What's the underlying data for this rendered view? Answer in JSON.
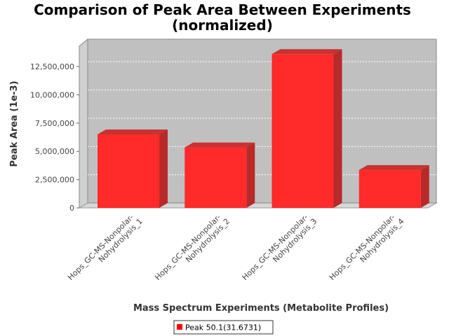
{
  "chart_data": {
    "type": "bar",
    "title_line1": "Comparison of Peak Area Between Experiments",
    "title_line2": "(normalized)",
    "xlabel": "Mass Spectrum Experiments (Metabolite Profiles)",
    "ylabel": "Peak Area (1e-3)",
    "categories": [
      [
        "Hops_GC-MS-Nonpolar-",
        "Nohydrolysis_1"
      ],
      [
        "Hops_GC-MS-Nonpolar-",
        "Nohydrolysis_2"
      ],
      [
        "Hops_GC-MS-Nonpolar-",
        "Nohydrolysis_3"
      ],
      [
        "Hops_GC-MS-Nonpolar-",
        "Nohydrolysis_4"
      ]
    ],
    "series": [
      {
        "name": "Peak 50.1(31.6731)",
        "values": [
          6500000,
          5350000,
          13600000,
          3350000
        ],
        "color": "#ff2a2a"
      }
    ],
    "yticks": [
      0,
      2500000,
      5000000,
      7500000,
      10000000,
      12500000
    ],
    "ytick_labels": [
      "0",
      "2,500,000",
      "5,000,000",
      "7,500,000",
      "10,000,000",
      "12,500,000"
    ],
    "ylim": [
      0,
      14300000
    ],
    "grid": true,
    "legend_position": "bottom",
    "plot_background": "#c0c0c0"
  }
}
